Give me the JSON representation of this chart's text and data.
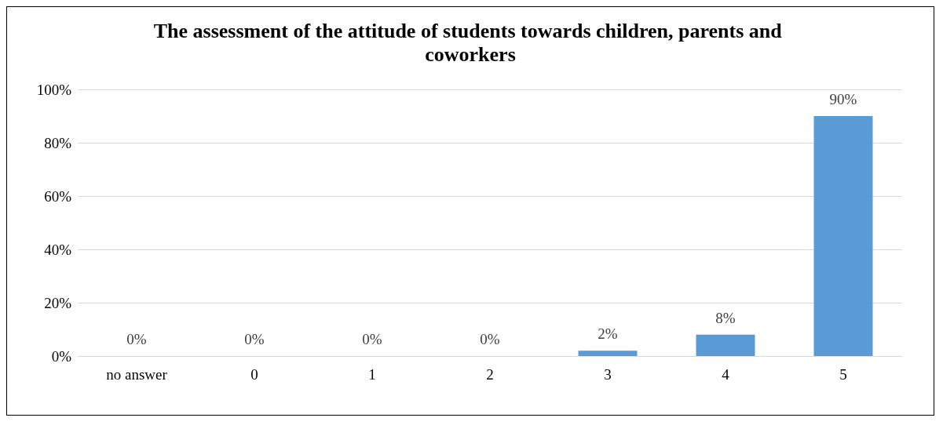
{
  "chart_data": {
    "type": "bar",
    "title": "The assessment of the attitude of students towards children, parents and coworkers",
    "categories": [
      "no answer",
      "0",
      "1",
      "2",
      "3",
      "4",
      "5"
    ],
    "values": [
      0,
      0,
      0,
      0,
      2,
      8,
      90
    ],
    "value_labels": [
      "0%",
      "0%",
      "0%",
      "0%",
      "2%",
      "8%",
      "90%"
    ],
    "color": "#5b9bd5",
    "ylim": [
      0,
      100
    ],
    "yticks": [
      {
        "value": 0,
        "label": "0%"
      },
      {
        "value": 20,
        "label": "20%"
      },
      {
        "value": 40,
        "label": "40%"
      },
      {
        "value": 60,
        "label": "60%"
      },
      {
        "value": 80,
        "label": "80%"
      },
      {
        "value": 100,
        "label": "100%"
      }
    ],
    "grid": "y"
  }
}
